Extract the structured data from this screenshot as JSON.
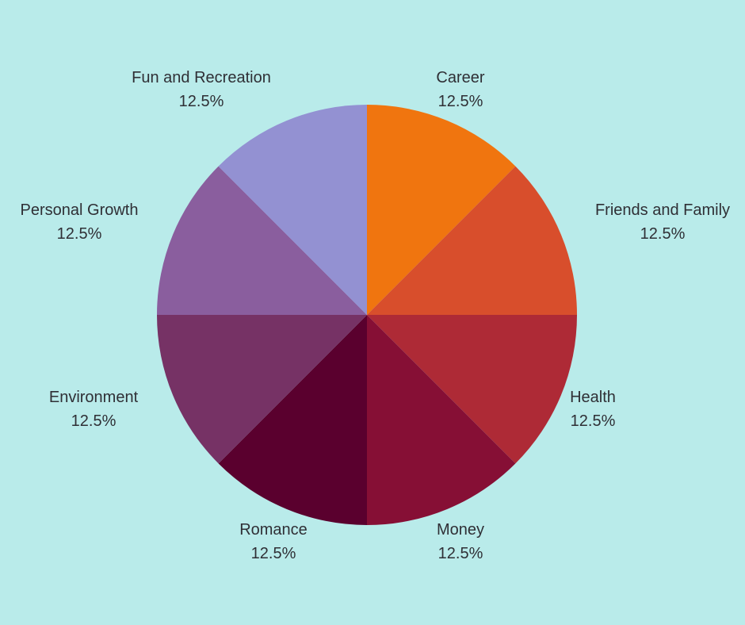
{
  "chart_data": {
    "type": "pie",
    "title": "",
    "slices": [
      {
        "label": "Career",
        "value": 12.5,
        "value_label": "12.5%",
        "color": "#f0750f"
      },
      {
        "label": "Friends and Family",
        "value": 12.5,
        "value_label": "12.5%",
        "color": "#d84e2c"
      },
      {
        "label": "Health",
        "value": 12.5,
        "value_label": "12.5%",
        "color": "#ae2a36"
      },
      {
        "label": "Money",
        "value": 12.5,
        "value_label": "12.5%",
        "color": "#860f35"
      },
      {
        "label": "Romance",
        "value": 12.5,
        "value_label": "12.5%",
        "color": "#5a002e"
      },
      {
        "label": "Environment",
        "value": 12.5,
        "value_label": "12.5%",
        "color": "#763265"
      },
      {
        "label": "Personal Growth",
        "value": 12.5,
        "value_label": "12.5%",
        "color": "#8a5e9e"
      },
      {
        "label": "Fun and Recreation",
        "value": 12.5,
        "value_label": "12.5%",
        "color": "#9391d2"
      }
    ],
    "start_angle": "12 o'clock",
    "direction": "clockwise",
    "legend": "none",
    "background_color": "#b9ebea"
  }
}
